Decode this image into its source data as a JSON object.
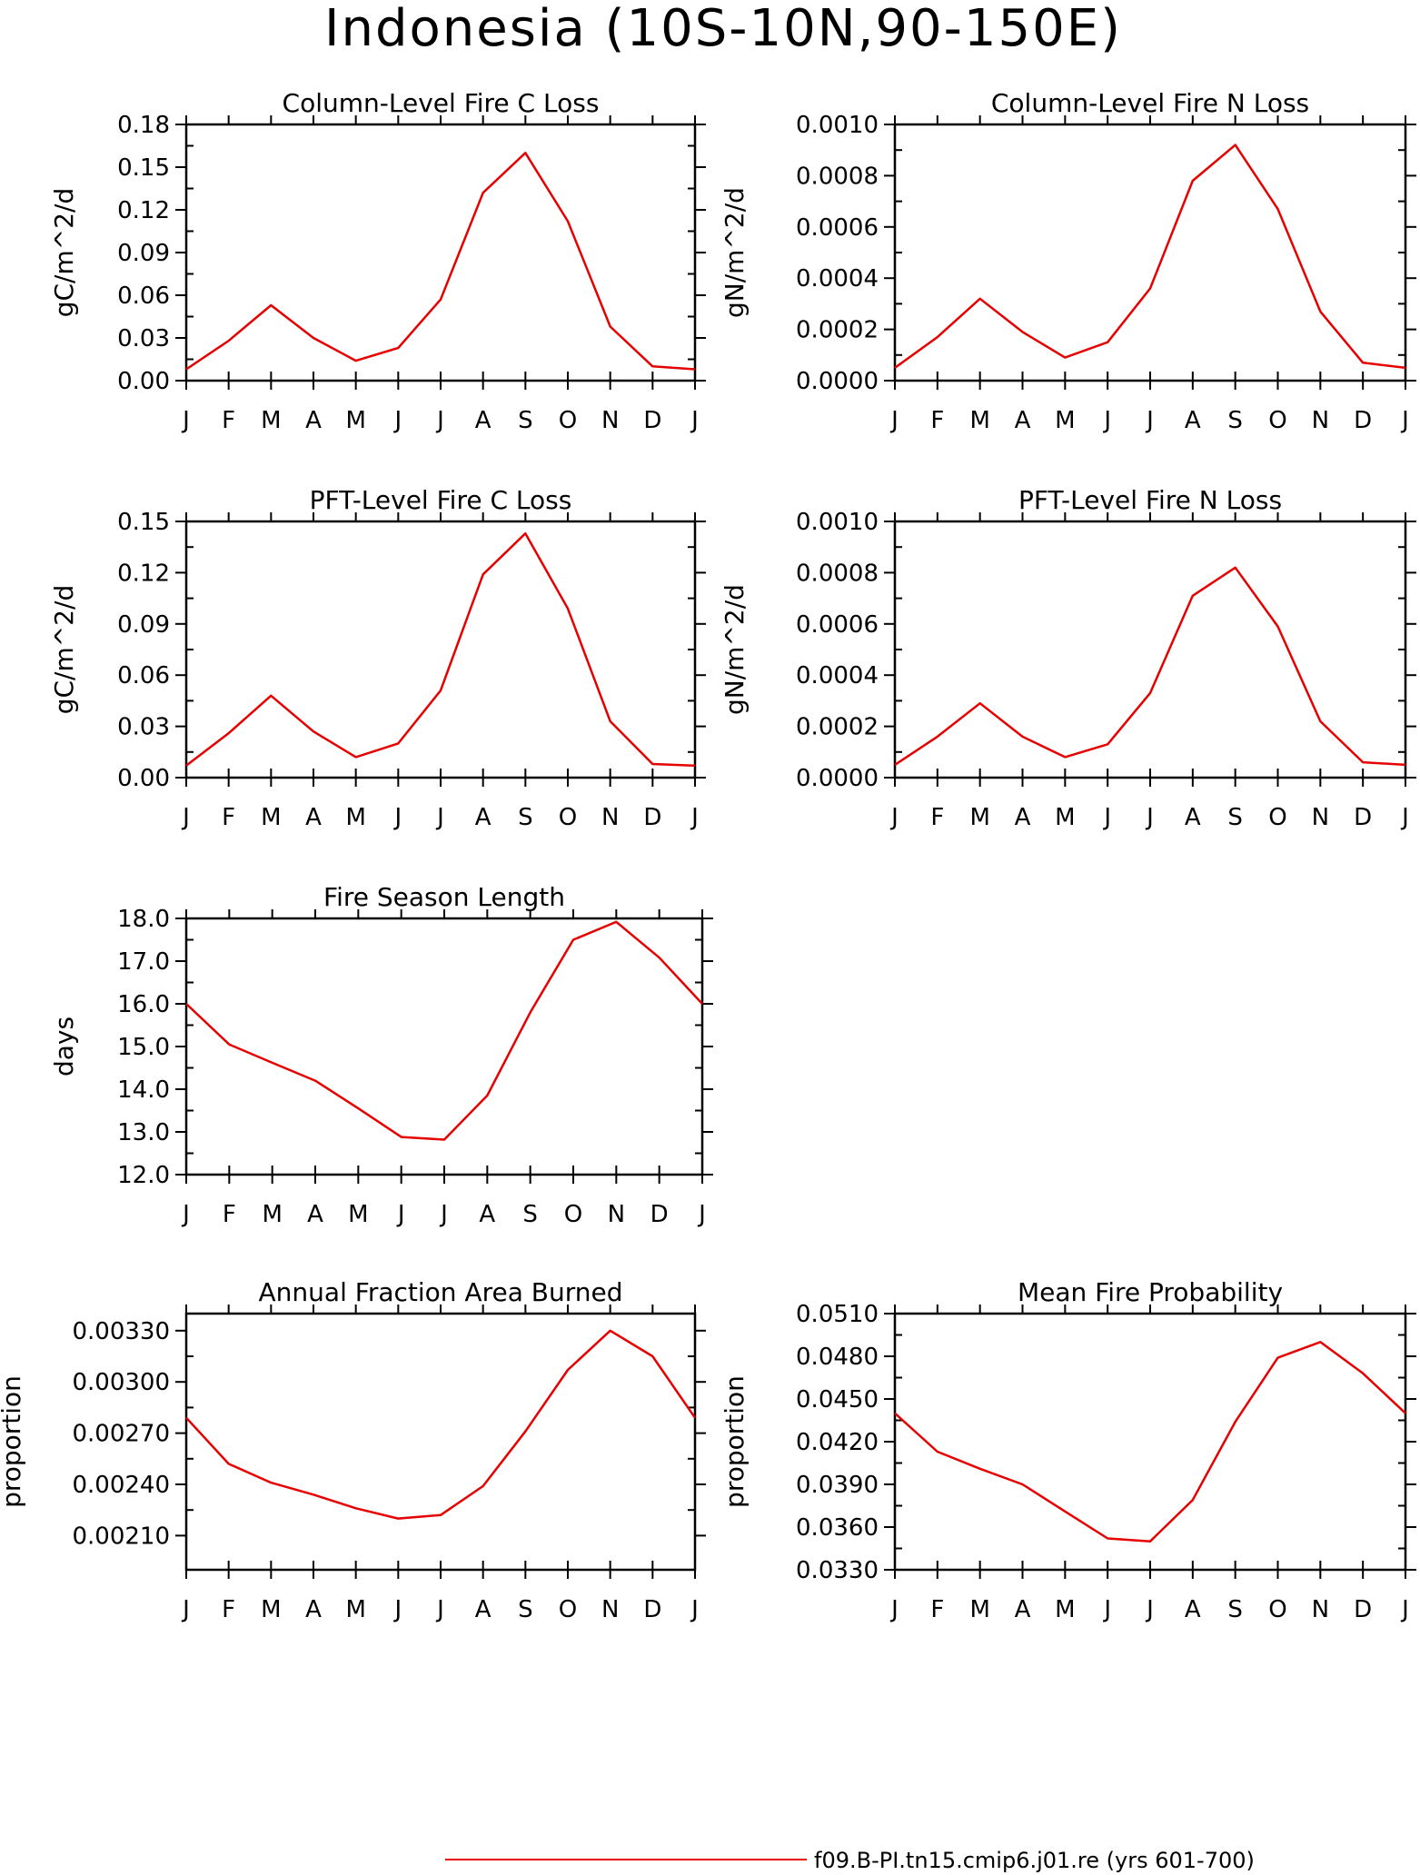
{
  "title": "Indonesia (10S-10N,90-150E)",
  "legend": {
    "label": "f09.B-PI.tn15.cmip6.j01.re (yrs 601-700)",
    "color": "#e60000"
  },
  "months": [
    "J",
    "F",
    "M",
    "A",
    "M",
    "J",
    "J",
    "A",
    "S",
    "O",
    "N",
    "D",
    "J"
  ],
  "line_color": "#e60000",
  "chart_data": [
    {
      "type": "line",
      "title": "Column-Level Fire C Loss",
      "ylabel": "gC/m^2/d",
      "ylim": [
        0,
        0.18
      ],
      "yticks": [
        "0.00",
        "0.03",
        "0.06",
        "0.09",
        "0.12",
        "0.15",
        "0.18"
      ],
      "x": [
        "J",
        "F",
        "M",
        "A",
        "M",
        "J",
        "J",
        "A",
        "S",
        "O",
        "N",
        "D",
        "J"
      ],
      "series": [
        {
          "values": [
            0.008,
            0.028,
            0.053,
            0.03,
            0.014,
            0.023,
            0.057,
            0.132,
            0.16,
            0.112,
            0.038,
            0.01,
            0.008
          ]
        }
      ]
    },
    {
      "type": "line",
      "title": "Column-Level Fire N Loss",
      "ylabel": "gN/m^2/d",
      "ylim": [
        0,
        0.001
      ],
      "yticks": [
        "0.0000",
        "0.0002",
        "0.0004",
        "0.0006",
        "0.0008",
        "0.0010"
      ],
      "x": [
        "J",
        "F",
        "M",
        "A",
        "M",
        "J",
        "J",
        "A",
        "S",
        "O",
        "N",
        "D",
        "J"
      ],
      "series": [
        {
          "values": [
            5e-05,
            0.00017,
            0.00032,
            0.00019,
            9e-05,
            0.00015,
            0.00036,
            0.00078,
            0.00092,
            0.00067,
            0.00027,
            7e-05,
            5e-05
          ]
        }
      ]
    },
    {
      "type": "line",
      "title": "PFT-Level Fire C Loss",
      "ylabel": "gC/m^2/d",
      "ylim": [
        0,
        0.15
      ],
      "yticks": [
        "0.00",
        "0.03",
        "0.06",
        "0.09",
        "0.12",
        "0.15"
      ],
      "x": [
        "J",
        "F",
        "M",
        "A",
        "M",
        "J",
        "J",
        "A",
        "S",
        "O",
        "N",
        "D",
        "J"
      ],
      "series": [
        {
          "values": [
            0.007,
            0.026,
            0.048,
            0.027,
            0.012,
            0.02,
            0.051,
            0.119,
            0.143,
            0.099,
            0.033,
            0.008,
            0.007
          ]
        }
      ]
    },
    {
      "type": "line",
      "title": "PFT-Level Fire N Loss",
      "ylabel": "gN/m^2/d",
      "ylim": [
        0,
        0.001
      ],
      "yticks": [
        "0.0000",
        "0.0002",
        "0.0004",
        "0.0006",
        "0.0008",
        "0.0010"
      ],
      "x": [
        "J",
        "F",
        "M",
        "A",
        "M",
        "J",
        "J",
        "A",
        "S",
        "O",
        "N",
        "D",
        "J"
      ],
      "series": [
        {
          "values": [
            5e-05,
            0.00016,
            0.00029,
            0.00016,
            8e-05,
            0.00013,
            0.00033,
            0.00071,
            0.00082,
            0.00059,
            0.00022,
            6e-05,
            5e-05
          ]
        }
      ]
    },
    {
      "type": "line",
      "title": "Fire Season Length",
      "ylabel": "days",
      "ylim": [
        12,
        18
      ],
      "yticks": [
        "12.0",
        "13.0",
        "14.0",
        "15.0",
        "16.0",
        "17.0",
        "18.0"
      ],
      "x": [
        "J",
        "F",
        "M",
        "A",
        "M",
        "J",
        "J",
        "A",
        "S",
        "O",
        "N",
        "D",
        "J"
      ],
      "series": [
        {
          "values": [
            16.0,
            15.05,
            14.62,
            14.2,
            13.55,
            12.88,
            12.82,
            13.85,
            15.8,
            17.5,
            17.92,
            17.08,
            16.0
          ]
        }
      ]
    },
    {
      "type": "line",
      "title": "Annual Fraction Area Burned",
      "ylabel": "proportion",
      "ylim": [
        0.0019,
        0.0034
      ],
      "yticks": [
        "0.00210",
        "0.00240",
        "0.00270",
        "0.00300",
        "0.00330"
      ],
      "ytick_values": [
        0.0021,
        0.0024,
        0.0027,
        0.003,
        0.0033
      ],
      "x": [
        "J",
        "F",
        "M",
        "A",
        "M",
        "J",
        "J",
        "A",
        "S",
        "O",
        "N",
        "D",
        "J"
      ],
      "series": [
        {
          "values": [
            0.00279,
            0.00252,
            0.00241,
            0.00234,
            0.00226,
            0.0022,
            0.00222,
            0.00239,
            0.00271,
            0.00307,
            0.0033,
            0.00315,
            0.00279
          ]
        }
      ]
    },
    {
      "type": "line",
      "title": "Mean Fire Probability",
      "ylabel": "proportion",
      "ylim": [
        0.033,
        0.051
      ],
      "yticks": [
        "0.0330",
        "0.0360",
        "0.0390",
        "0.0420",
        "0.0450",
        "0.0480",
        "0.0510"
      ],
      "x": [
        "J",
        "F",
        "M",
        "A",
        "M",
        "J",
        "J",
        "A",
        "S",
        "O",
        "N",
        "D",
        "J"
      ],
      "series": [
        {
          "values": [
            0.044,
            0.0413,
            0.0401,
            0.039,
            0.0371,
            0.0352,
            0.035,
            0.0379,
            0.0434,
            0.0479,
            0.049,
            0.0468,
            0.044
          ]
        }
      ]
    }
  ]
}
